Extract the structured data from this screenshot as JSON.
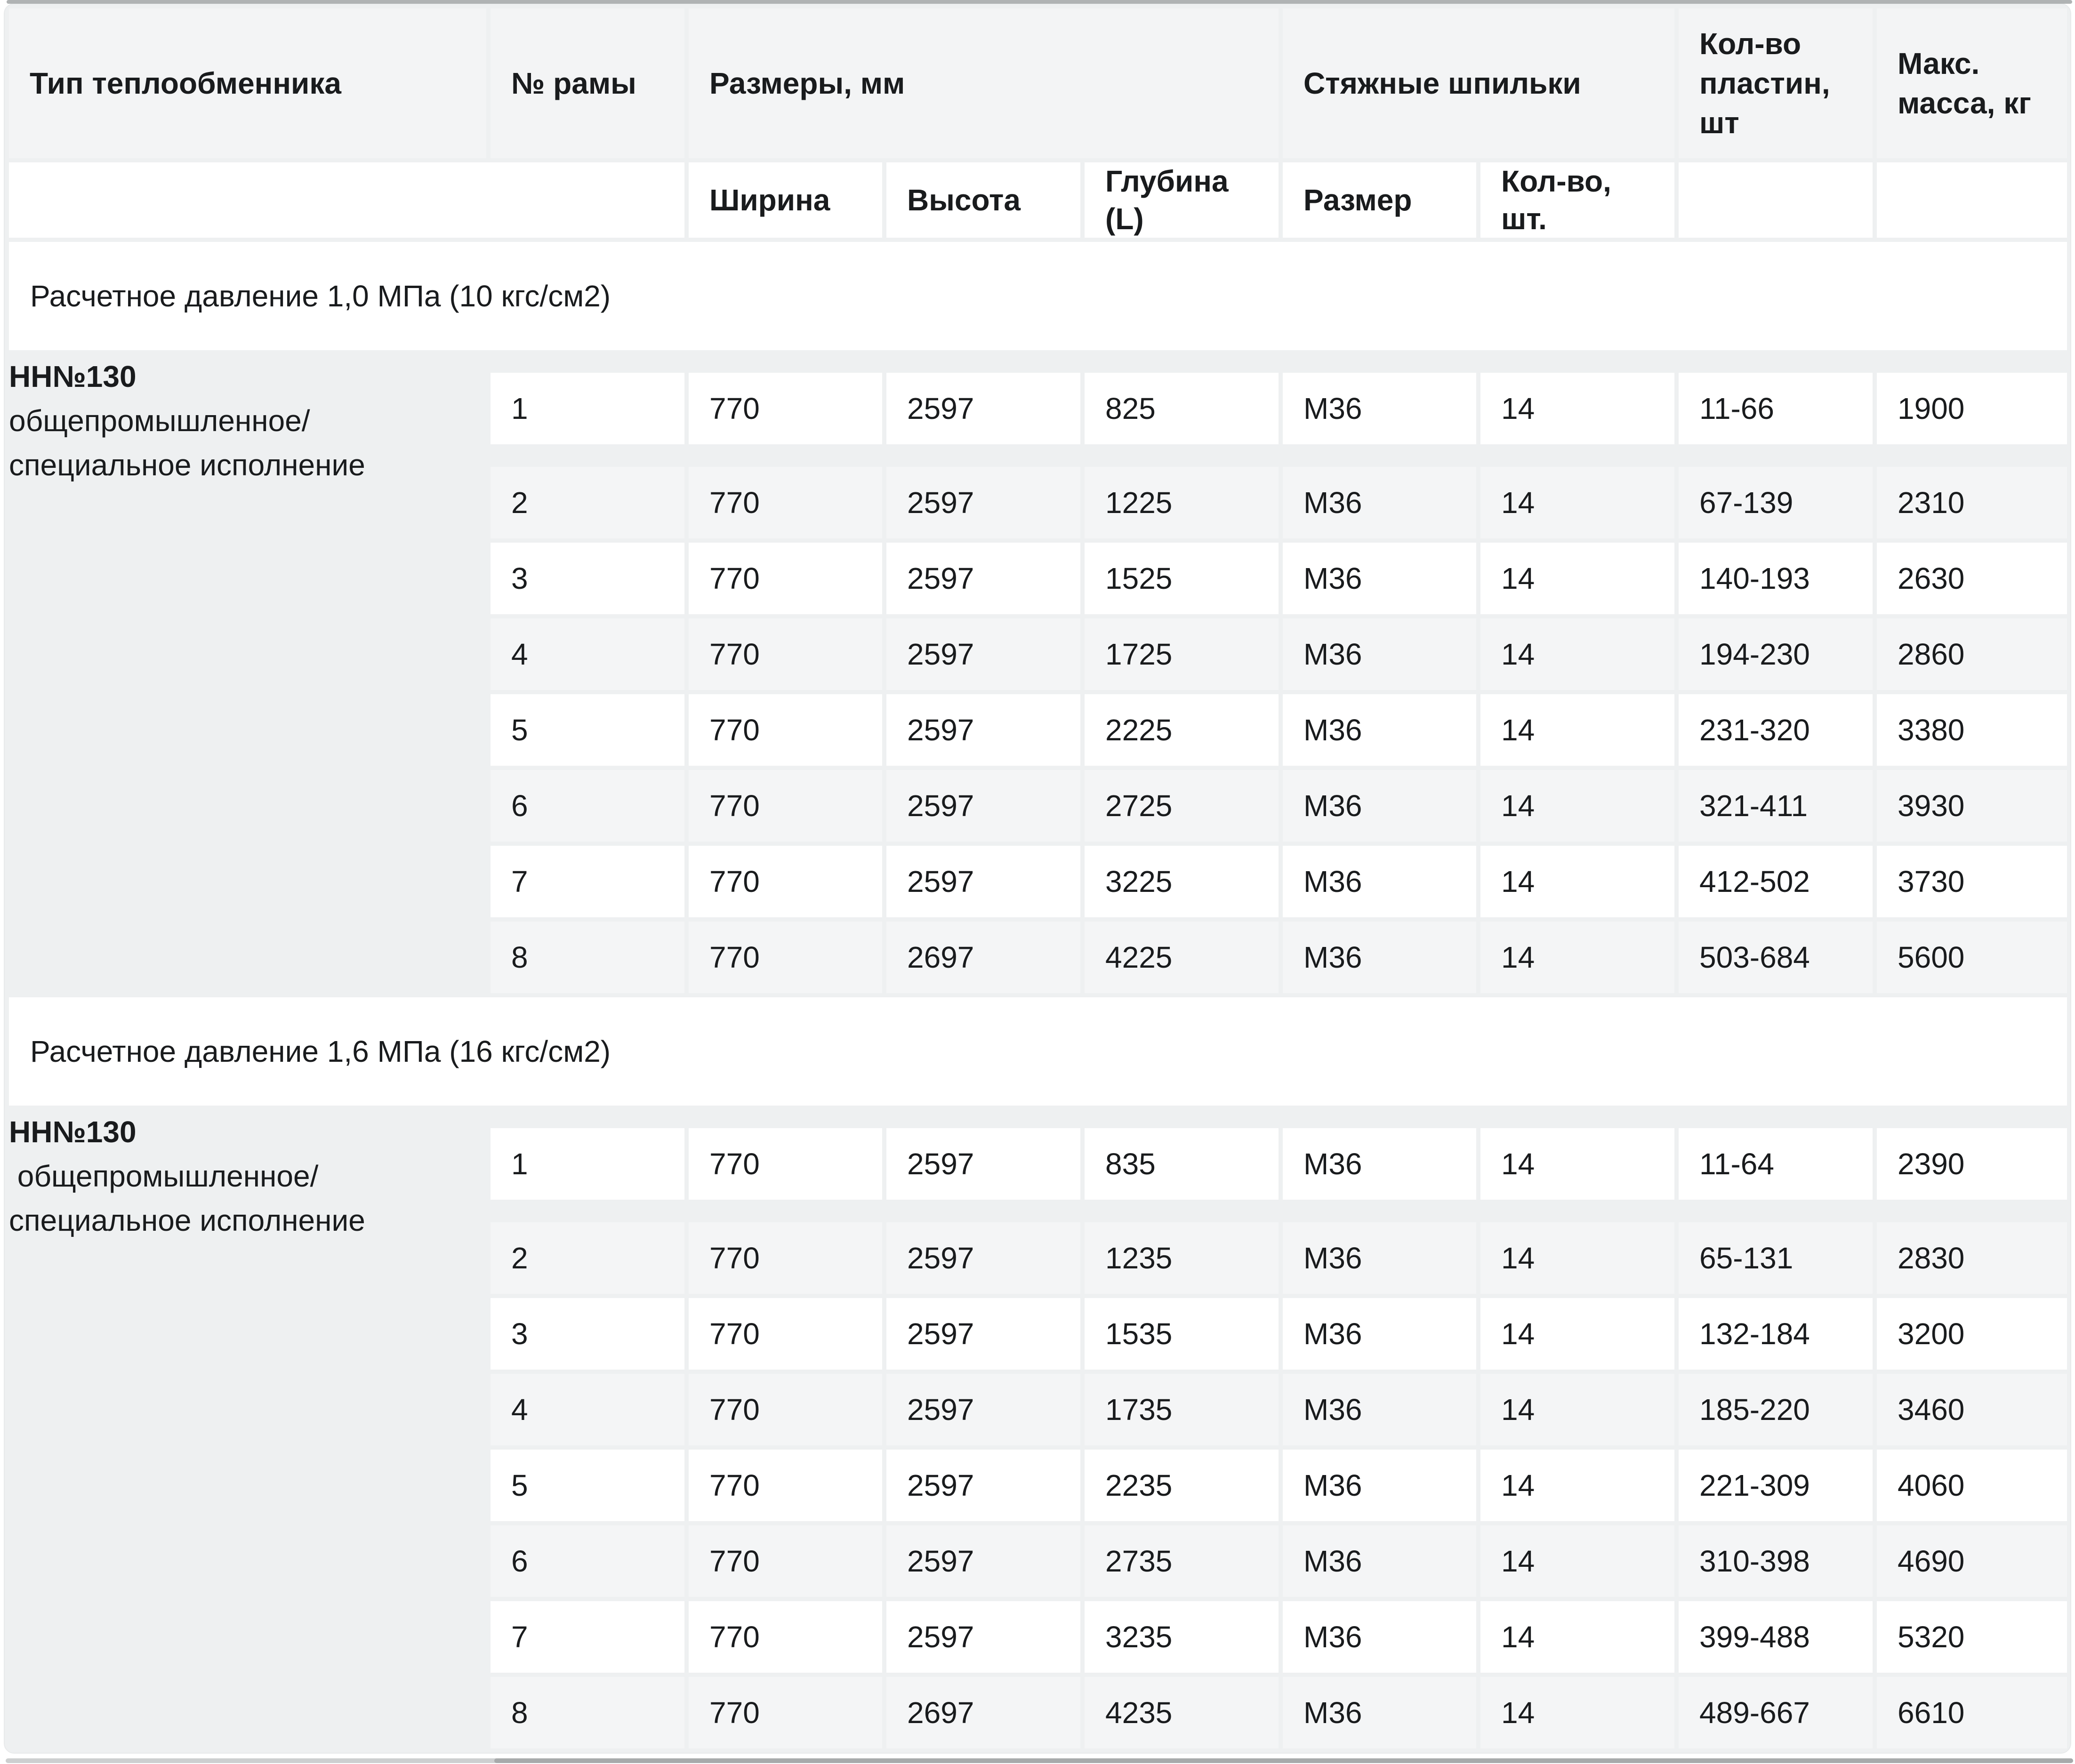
{
  "colors": {
    "header_bg": "#f3f4f5",
    "row_shade": "#f4f5f6",
    "cell_bg": "#ffffff",
    "gap_bg": "#eef0f1",
    "text": "#191b1d",
    "top_bar": "#b0b3b4",
    "scroll_track": "#cdcfd0",
    "scroll_thumb": "#a7aaab"
  },
  "table": {
    "header": {
      "type": "Тип теплообменника",
      "frame": "№ рамы",
      "dimensions": "Размеры, мм",
      "studs": "Стяжные шпильки",
      "plates": "Кол-во\nпластин,\nшт",
      "mass": "Макс.\nмасса, кг"
    },
    "subheader": {
      "width": "Ширина",
      "height": "Высота",
      "depth": "Глубина\n(L)",
      "size": "Размер",
      "qty": "Кол-во,\nшт."
    },
    "sections": [
      {
        "title": "Расчетное давление 1,0 МПа (10 кгс/см2)",
        "type_model": "НН№130",
        "type_desc": "общепромышленное/\nспециальное исполнение",
        "rows": [
          [
            "1",
            "770",
            "2597",
            "825",
            "М36",
            "14",
            "11-66",
            "1900"
          ],
          [
            "2",
            "770",
            "2597",
            "1225",
            "М36",
            "14",
            "67-139",
            "2310"
          ],
          [
            "3",
            "770",
            "2597",
            "1525",
            "М36",
            "14",
            "140-193",
            "2630"
          ],
          [
            "4",
            "770",
            "2597",
            "1725",
            "М36",
            "14",
            "194-230",
            "2860"
          ],
          [
            "5",
            "770",
            "2597",
            "2225",
            "М36",
            "14",
            "231-320",
            "3380"
          ],
          [
            "6",
            "770",
            "2597",
            "2725",
            "М36",
            "14",
            "321-411",
            "3930"
          ],
          [
            "7",
            "770",
            "2597",
            "3225",
            "М36",
            "14",
            "412-502",
            "3730"
          ],
          [
            "8",
            "770",
            "2697",
            "4225",
            "М36",
            "14",
            "503-684",
            "5600"
          ]
        ]
      },
      {
        "title": "Расчетное давление 1,6 МПа (16 кгс/см2)",
        "type_model": "НН№130",
        "type_desc": " общепромышленное/\nспециальное исполнение",
        "rows": [
          [
            "1",
            "770",
            "2597",
            "835",
            "М36",
            "14",
            "11-64",
            "2390"
          ],
          [
            "2",
            "770",
            "2597",
            "1235",
            "М36",
            "14",
            "65-131",
            "2830"
          ],
          [
            "3",
            "770",
            "2597",
            "1535",
            "М36",
            "14",
            "132-184",
            "3200"
          ],
          [
            "4",
            "770",
            "2597",
            "1735",
            "М36",
            "14",
            "185-220",
            "3460"
          ],
          [
            "5",
            "770",
            "2597",
            "2235",
            "М36",
            "14",
            "221-309",
            "4060"
          ],
          [
            "6",
            "770",
            "2597",
            "2735",
            "М36",
            "14",
            "310-398",
            "4690"
          ],
          [
            "7",
            "770",
            "2597",
            "3235",
            "М36",
            "14",
            "399-488",
            "5320"
          ],
          [
            "8",
            "770",
            "2697",
            "4235",
            "М36",
            "14",
            "489-667",
            "6610"
          ]
        ]
      }
    ],
    "column_cell_names": [
      "cell-frame-number",
      "cell-width",
      "cell-height",
      "cell-depth",
      "cell-stud-size",
      "cell-stud-qty",
      "cell-plates-range",
      "cell-max-mass"
    ]
  }
}
